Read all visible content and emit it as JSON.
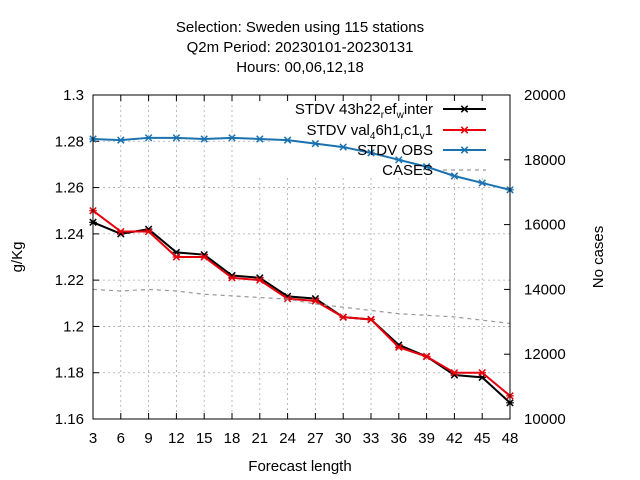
{
  "title_lines": [
    "Selection: Sweden using    115 stations",
    "Q2m   Period: 20230101-20230131",
    "Hours:  00,06,12,18"
  ],
  "chart_data": {
    "type": "line",
    "xlabel": "Forecast length",
    "ylabel": "g/Kg",
    "y2label": "No cases",
    "x": [
      3,
      6,
      9,
      12,
      15,
      18,
      21,
      24,
      27,
      30,
      33,
      36,
      39,
      42,
      45,
      48
    ],
    "xlim": [
      3,
      48
    ],
    "ylim": [
      1.16,
      1.3
    ],
    "y2lim": [
      10000,
      20000
    ],
    "yticks": [
      "1.16",
      "1.18",
      "1.2",
      "1.22",
      "1.24",
      "1.26",
      "1.28",
      "1.3"
    ],
    "y2ticks": [
      "10000",
      "12000",
      "14000",
      "16000",
      "18000",
      "20000"
    ],
    "grid": true,
    "legend_position": "top-right",
    "series": [
      {
        "name": "STDV 43h22_ref_winter",
        "legend_parts": {
          "a": "STDV 43h22",
          "b": "r",
          "c": "ef",
          "d": "w",
          "e": "inter"
        },
        "color": "#000000",
        "axis": "y",
        "values": [
          1.245,
          1.24,
          1.242,
          1.232,
          1.231,
          1.222,
          1.221,
          1.213,
          1.212,
          1.204,
          1.203,
          1.192,
          1.187,
          1.179,
          1.178,
          1.167
        ]
      },
      {
        "name": "STDV val46h1_rc1_v1",
        "legend_parts": {
          "a": "STDV val",
          "b": "4",
          "c": "6h1",
          "d": "r",
          "e": "c1",
          "f": "v",
          "g": "1"
        },
        "color": "#e8000b",
        "axis": "y",
        "values": [
          1.25,
          1.241,
          1.241,
          1.23,
          1.23,
          1.221,
          1.22,
          1.212,
          1.211,
          1.204,
          1.203,
          1.191,
          1.187,
          1.18,
          1.18,
          1.17
        ]
      },
      {
        "name": "STDV OBS",
        "color": "#1a72b0",
        "axis": "y",
        "values": [
          1.281,
          1.2805,
          1.2815,
          1.2815,
          1.281,
          1.2815,
          1.281,
          1.2805,
          1.279,
          1.2775,
          1.275,
          1.272,
          1.269,
          1.265,
          1.262,
          1.259
        ]
      },
      {
        "name": "CASES",
        "color": "#999999",
        "axis": "y2",
        "dashed": true,
        "values": [
          14000,
          13950,
          14000,
          13950,
          13850,
          13800,
          13750,
          13700,
          13550,
          13450,
          13350,
          13250,
          13200,
          13150,
          13050,
          12950
        ]
      }
    ]
  }
}
